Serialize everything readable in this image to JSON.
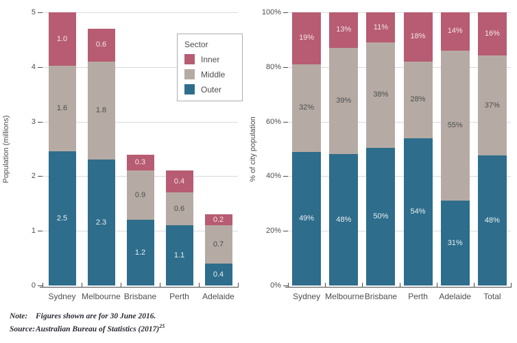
{
  "chart_data": [
    {
      "type": "bar",
      "stacked": true,
      "categories": [
        "Sydney",
        "Melbourne",
        "Brisbane",
        "Perth",
        "Adelaide"
      ],
      "series": [
        {
          "name": "Outer",
          "color": "#2e6d8b",
          "label_color": "#e9f0f3",
          "values": [
            2.5,
            2.3,
            1.2,
            1.1,
            0.4
          ]
        },
        {
          "name": "Middle",
          "color": "#b5aba4",
          "label_color": "#4d4d4d",
          "values": [
            1.6,
            1.8,
            0.9,
            0.6,
            0.7
          ]
        },
        {
          "name": "Inner",
          "color": "#b75c72",
          "label_color": "#f4e4e8",
          "values": [
            1.0,
            0.6,
            0.3,
            0.4,
            0.2
          ]
        }
      ],
      "title": "",
      "xlabel": "",
      "ylabel": "Population (millions)",
      "ylim": [
        0,
        5
      ],
      "yticks": [
        0,
        1,
        2,
        3,
        4,
        5
      ],
      "tick_suffix": "",
      "value_format": "fixed1",
      "normalized": false,
      "grid": true,
      "legend_position": "inside-top-right"
    },
    {
      "type": "bar",
      "stacked": true,
      "categories": [
        "Sydney",
        "Melbourne",
        "Brisbane",
        "Perth",
        "Adelaide",
        "Total"
      ],
      "series": [
        {
          "name": "Outer",
          "color": "#2e6d8b",
          "label_color": "#e9f0f3",
          "values": [
            49,
            48,
            50,
            54,
            31,
            48
          ]
        },
        {
          "name": "Middle",
          "color": "#b5aba4",
          "label_color": "#4d4d4d",
          "values": [
            32,
            39,
            38,
            28,
            55,
            37
          ]
        },
        {
          "name": "Inner",
          "color": "#b75c72",
          "label_color": "#f4e4e8",
          "values": [
            19,
            13,
            11,
            18,
            14,
            16
          ]
        }
      ],
      "title": "",
      "xlabel": "",
      "ylabel": "% of city population",
      "ylim": [
        0,
        100
      ],
      "yticks": [
        0,
        20,
        40,
        60,
        80,
        100
      ],
      "tick_suffix": "%",
      "value_format": "percent",
      "normalized": true,
      "grid": true
    }
  ],
  "legend": {
    "title": "Sector",
    "items": [
      {
        "label": "Inner",
        "color": "#b75c72"
      },
      {
        "label": "Middle",
        "color": "#b5aba4"
      },
      {
        "label": "Outer",
        "color": "#2e6d8b"
      }
    ]
  },
  "footer": {
    "note_label": "Note:",
    "note_text": "Figures shown are for 30 June 2016.",
    "source_label": "Source:",
    "source_text": "Australian Bureau of Statistics (2017)",
    "source_superscript": "25"
  },
  "colors": {
    "inner": "#b75c72",
    "middle": "#b5aba4",
    "outer": "#2e6d8b",
    "gridline": "#d9d9d9",
    "axis": "#4a4a4a",
    "text": "#4d4d4d"
  }
}
